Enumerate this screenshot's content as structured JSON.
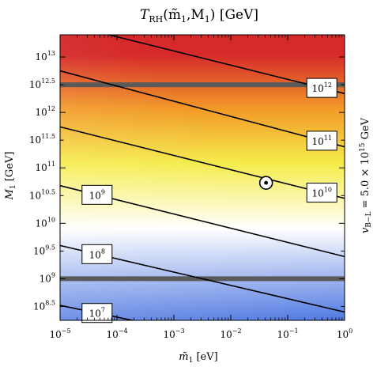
{
  "chart_data": {
    "type": "contour",
    "title": {
      "main": "T",
      "sub": "RH",
      "args": "(m̃",
      "args_sub": "1",
      "args_mid": ",M",
      "args_sub2": "1",
      "args_end": ") [GeV]"
    },
    "xlabel": {
      "main": "m̃",
      "sub": "1",
      "rest": " [eV]"
    },
    "ylabel": {
      "main": "M",
      "sub": "1",
      "rest": " [GeV]"
    },
    "side_label": {
      "main": "v",
      "sub": "B−L",
      "rest": " = 5.0 × 10",
      "sup": "15",
      "end": " GeV"
    },
    "x_scale": "log",
    "y_scale": "log",
    "xlim_log10": [
      -5,
      0
    ],
    "ylim_log10": [
      8.25,
      13.4
    ],
    "x_ticks": [
      {
        "log10": -5,
        "base": "10",
        "exp": "−5"
      },
      {
        "log10": -4,
        "base": "10",
        "exp": "−4"
      },
      {
        "log10": -3,
        "base": "10",
        "exp": "−3"
      },
      {
        "log10": -2,
        "base": "10",
        "exp": "−2"
      },
      {
        "log10": -1,
        "base": "10",
        "exp": "−1"
      },
      {
        "log10": 0,
        "base": "10",
        "exp": "0"
      }
    ],
    "y_ticks": [
      {
        "log10": 8.5,
        "base": "10",
        "exp": "8.5"
      },
      {
        "log10": 9,
        "base": "10",
        "exp": "9"
      },
      {
        "log10": 9.5,
        "base": "10",
        "exp": "9.5"
      },
      {
        "log10": 10,
        "base": "10",
        "exp": "10"
      },
      {
        "log10": 10.5,
        "base": "10",
        "exp": "10.5"
      },
      {
        "log10": 11,
        "base": "10",
        "exp": "11"
      },
      {
        "log10": 11.5,
        "base": "10",
        "exp": "11.5"
      },
      {
        "log10": 12,
        "base": "10",
        "exp": "12"
      },
      {
        "log10": 12.5,
        "base": "10",
        "exp": "12.5"
      },
      {
        "log10": 13,
        "base": "10",
        "exp": "13"
      }
    ],
    "contours": [
      {
        "level": "7",
        "base": "10",
        "exp": "7",
        "x_log10": [
          -5,
          0
        ],
        "y_log10": [
          8.52,
          7.46
        ],
        "label_at_x_log10": -4.35
      },
      {
        "level": "8",
        "base": "10",
        "exp": "8",
        "x_log10": [
          -5,
          0
        ],
        "y_log10": [
          9.6,
          8.4
        ],
        "label_at_x_log10": -4.35
      },
      {
        "level": "9",
        "base": "10",
        "exp": "9",
        "x_log10": [
          -5,
          0
        ],
        "y_log10": [
          10.68,
          9.4
        ],
        "label_at_x_log10": -4.35
      },
      {
        "level": "10",
        "base": "10",
        "exp": "10",
        "x_log10": [
          -5,
          0
        ],
        "y_log10": [
          11.74,
          10.45
        ],
        "label_at_x_log10": -0.4
      },
      {
        "level": "11",
        "base": "10",
        "exp": "11",
        "x_log10": [
          -5,
          0
        ],
        "y_log10": [
          12.75,
          11.38
        ],
        "label_at_x_log10": -0.4
      },
      {
        "level": "12",
        "base": "10",
        "exp": "12",
        "x_log10": [
          -5,
          0
        ],
        "y_log10": [
          13.62,
          12.34
        ],
        "label_at_x_log10": -0.4
      }
    ],
    "horizontal_bands_y_log10": [
      12.5,
      9.0
    ],
    "marker": {
      "x_log10": -1.38,
      "y_log10": 10.73,
      "symbol": "circled-dot"
    },
    "colormap": {
      "low": "#4a74e0",
      "mid_low": "#ffffff",
      "mid": "#f5ec4a",
      "mid_high": "#f29a28",
      "high": "#d62a2a"
    }
  }
}
